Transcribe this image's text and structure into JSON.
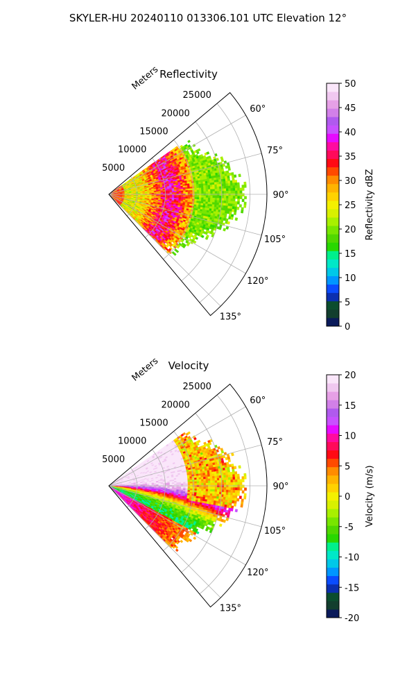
{
  "figure": {
    "title": "SKYLER-HU  20240110  013306.101 UTC Elevation 12°"
  },
  "chart_data": [
    {
      "type": "heatmap",
      "subtype": "polar-sector-ppi",
      "title": "Reflectivity",
      "range_label": "Meters",
      "range_ticks": [
        "5000",
        "10000",
        "15000",
        "20000",
        "25000"
      ],
      "range_tick_values": [
        5000,
        10000,
        15000,
        20000,
        25000
      ],
      "range_max": 28000,
      "azimuth_range_deg": [
        50,
        140
      ],
      "azimuth_tick_values": [
        60,
        75,
        90,
        105,
        120,
        135
      ],
      "azimuth_tick_labels": [
        "60°",
        "75°",
        "90°",
        "105°",
        "120°",
        "135°"
      ],
      "grid": true,
      "colorbar": {
        "label": "Reflectivity dBZ",
        "vmin": 0,
        "vmax": 50,
        "tick_values": [
          0,
          5,
          10,
          15,
          20,
          25,
          30,
          35,
          40,
          45,
          50
        ],
        "tick_labels": [
          "0",
          "5",
          "10",
          "15",
          "20",
          "25",
          "30",
          "35",
          "40",
          "45",
          "50"
        ],
        "colors": [
          "#0a1a5a",
          "#123e2e",
          "#0b4d2e",
          "#0b2fb0",
          "#0a4cff",
          "#0096ff",
          "#00c8e8",
          "#00e8c8",
          "#00f08c",
          "#28d800",
          "#50d800",
          "#78e600",
          "#a8f000",
          "#d8f000",
          "#f4f000",
          "#ffd200",
          "#ffb400",
          "#ff8c00",
          "#ff4a00",
          "#ff0a14",
          "#ff0a5a",
          "#ff0aa0",
          "#e60aff",
          "#c850ff",
          "#b05aee",
          "#d280e8",
          "#e6a0e6",
          "#f0c8f0",
          "#fae6fa"
        ]
      },
      "field": {
        "range_bands": [
          {
            "r_from": 0,
            "r_to": 18000,
            "dominant_value": 32
          },
          {
            "r_from": 14000,
            "r_to": 22000,
            "dominant_value": 22
          },
          {
            "r_from": 20000,
            "r_to": 26000,
            "dominant_value": 18
          }
        ],
        "notes_values": [
          22,
          30,
          36,
          18
        ]
      }
    },
    {
      "type": "heatmap",
      "subtype": "polar-sector-ppi",
      "title": "Velocity",
      "range_label": "Meters",
      "range_ticks": [
        "5000",
        "10000",
        "15000",
        "20000",
        "25000"
      ],
      "range_tick_values": [
        5000,
        10000,
        15000,
        20000,
        25000
      ],
      "range_max": 28000,
      "azimuth_range_deg": [
        50,
        140
      ],
      "azimuth_tick_values": [
        60,
        75,
        90,
        105,
        120,
        135
      ],
      "azimuth_tick_labels": [
        "60°",
        "75°",
        "90°",
        "105°",
        "120°",
        "135°"
      ],
      "grid": true,
      "colorbar": {
        "label": "Velocity (m/s)",
        "vmin": -20,
        "vmax": 20,
        "tick_values": [
          -20,
          -15,
          -10,
          -5,
          0,
          5,
          10,
          15,
          20
        ],
        "tick_labels": [
          "-20",
          "-15",
          "-10",
          "-5",
          "0",
          "5",
          "10",
          "15",
          "20"
        ],
        "colors": [
          "#0a1a5a",
          "#123e2e",
          "#0b4d2e",
          "#0b2fb0",
          "#0a4cff",
          "#0096ff",
          "#00c8e8",
          "#00e8c8",
          "#00f08c",
          "#28d800",
          "#50d800",
          "#78e600",
          "#a8f000",
          "#d8f000",
          "#f4f000",
          "#ffd200",
          "#ffb400",
          "#ff8c00",
          "#ff4a00",
          "#ff0a14",
          "#ff0a5a",
          "#ff0aa0",
          "#e60aff",
          "#c850ff",
          "#b05aee",
          "#d280e8",
          "#e6a0e6",
          "#f0c8f0",
          "#fae6fa"
        ]
      }
    }
  ]
}
